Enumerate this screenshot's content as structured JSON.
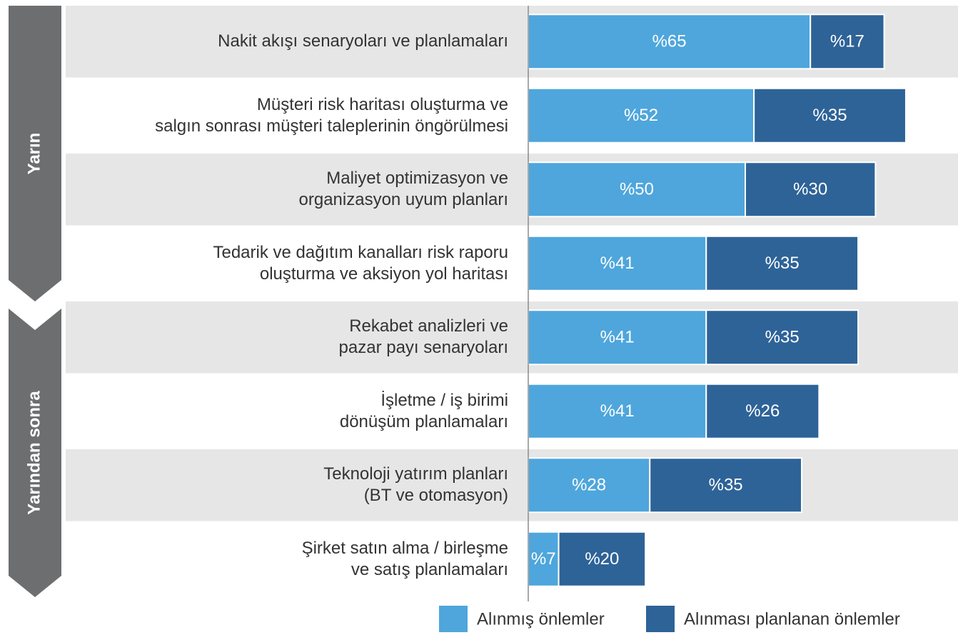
{
  "chart_data": {
    "type": "stacked-barh",
    "groups": [
      "Yarın",
      "Yarından sonra"
    ],
    "categories": [
      "Nakit akışı senaryoları ve planlamaları",
      "Müşteri risk haritası oluşturma ve\nsalgın sonrası müşteri taleplerinin öngörülmesi",
      "Maliyet optimizasyon ve\norganizasyon uyum planları",
      "Tedarik ve dağıtım kanalları risk raporu\noluşturma ve aksiyon yol haritası",
      "Rekabet analizleri ve\npazar payı senaryoları",
      "İşletme / iş birimi\ndönüşüm planlamaları",
      "Teknoloji yatırım planları\n(BT ve otomasyon)",
      "Şirket satın alma / birleşme\nve satış planlamaları"
    ],
    "series": [
      {
        "name": "Alınmış önlemler",
        "color": "#4ea6dc",
        "values": [
          65,
          52,
          50,
          41,
          41,
          41,
          28,
          7
        ],
        "value_labels": [
          "%65",
          "%52",
          "%50",
          "%41",
          "%41",
          "%41",
          "%28",
          "%7"
        ]
      },
      {
        "name": "Alınması planlanan önlemler",
        "color": "#2e6398",
        "values": [
          17,
          35,
          30,
          35,
          35,
          26,
          35,
          20
        ],
        "value_labels": [
          "%17",
          "%35",
          "%30",
          "%35",
          "%35",
          "%26",
          "%35",
          "%20"
        ]
      }
    ]
  }
}
